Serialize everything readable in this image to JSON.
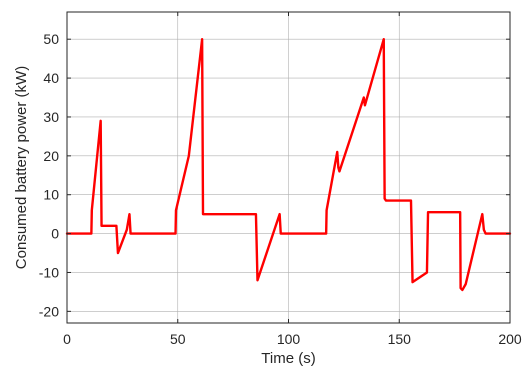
{
  "chart_data": {
    "type": "line",
    "title": "",
    "xlabel": "Time (s)",
    "ylabel": "Consumed battery power (kW)",
    "xlim": [
      0,
      200
    ],
    "ylim": [
      -23,
      57
    ],
    "xticks": [
      0,
      50,
      100,
      150,
      200
    ],
    "xtick_labels": [
      "0",
      "50",
      "100",
      "150",
      "200"
    ],
    "yticks": [
      -20,
      -10,
      0,
      10,
      20,
      30,
      40,
      50
    ],
    "ytick_labels": [
      "-20",
      "-10",
      "0",
      "10",
      "20",
      "30",
      "40",
      "50"
    ],
    "grid": true,
    "line_color": "#ff0000",
    "series": [
      {
        "x": [
          0,
          11,
          11.2,
          15.2,
          15.6,
          22,
          22.3,
          23,
          27,
          28.2,
          28.7,
          49,
          49.2,
          55,
          56,
          61,
          61.4,
          85,
          85.3,
          86,
          96,
          96.5,
          98,
          117,
          117.2,
          122,
          122.5,
          123,
          134,
          134.5,
          143,
          143.4,
          144,
          155,
          155.3,
          156,
          162.5,
          163,
          172,
          177.5,
          177.7,
          178.5,
          180,
          187.5,
          188.2,
          189,
          200
        ],
        "y": [
          0,
          0,
          6,
          29,
          2,
          2,
          2,
          -5,
          1,
          5,
          0,
          0,
          6,
          20,
          25,
          50,
          5,
          5,
          5,
          -12,
          5,
          0,
          0,
          0,
          6,
          21,
          17,
          16,
          35,
          33,
          50,
          9,
          8.5,
          8.5,
          8.5,
          -12.5,
          -10,
          5.5,
          5.5,
          5.5,
          -14,
          -14.5,
          -13,
          5,
          1,
          0,
          0
        ]
      }
    ]
  }
}
